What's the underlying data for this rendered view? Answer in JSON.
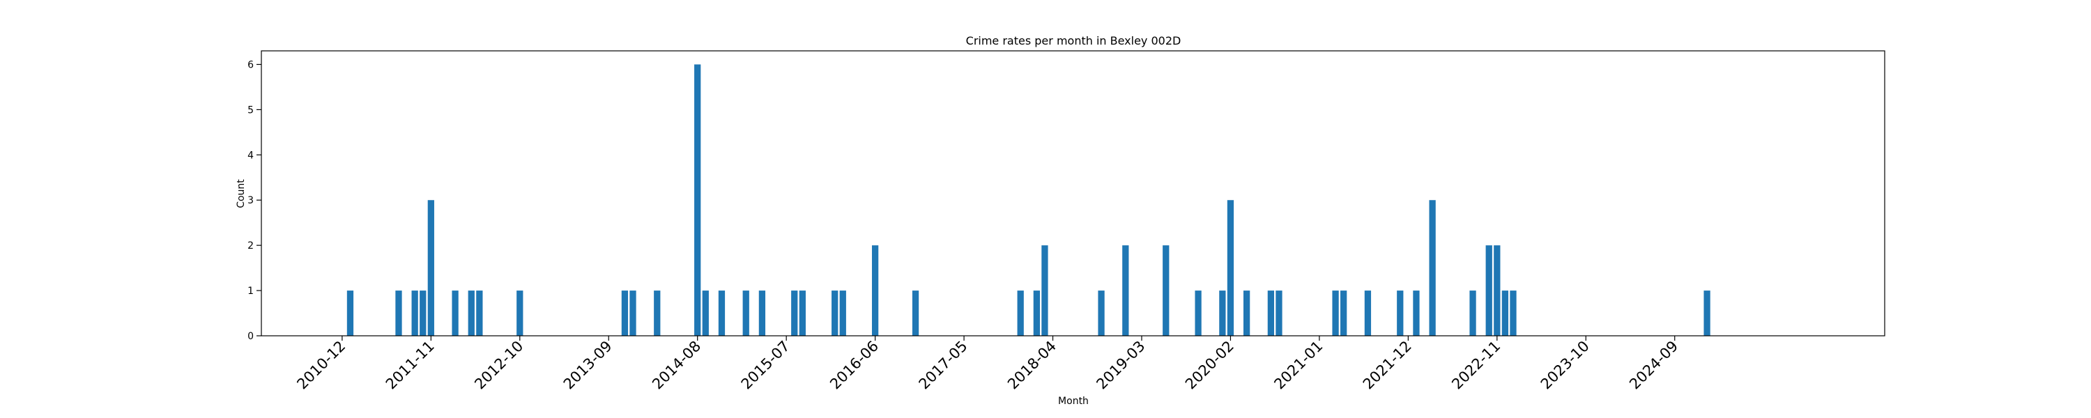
{
  "chart_data": {
    "type": "bar",
    "title": "Crime rates per month in Bexley 002D",
    "xlabel": "Month",
    "ylabel": "Count",
    "ylim": [
      0,
      6.3
    ],
    "xlim": [
      "2010-02",
      "2026-11"
    ],
    "yticks": [
      0,
      1,
      2,
      3,
      4,
      5,
      6
    ],
    "xticks": [
      "2010-12",
      "2011-11",
      "2012-10",
      "2013-09",
      "2014-08",
      "2015-07",
      "2016-06",
      "2017-05",
      "2018-04",
      "2019-03",
      "2020-02",
      "2021-01",
      "2021-12",
      "2022-11",
      "2023-10",
      "2024-09"
    ],
    "grid": false,
    "color": "#1f77b4",
    "series": [
      {
        "x": [
          "2011-01",
          "2011-07",
          "2011-09",
          "2011-10",
          "2011-11",
          "2012-02",
          "2012-04",
          "2012-05",
          "2012-10",
          "2013-11",
          "2013-12",
          "2014-03",
          "2014-08",
          "2014-09",
          "2014-11",
          "2015-02",
          "2015-04",
          "2015-08",
          "2015-09",
          "2016-01",
          "2016-02",
          "2016-06",
          "2016-11",
          "2017-12",
          "2018-02",
          "2018-03",
          "2018-10",
          "2019-01",
          "2019-06",
          "2019-10",
          "2020-01",
          "2020-02",
          "2020-04",
          "2020-07",
          "2020-08",
          "2021-03",
          "2021-04",
          "2021-07",
          "2021-11",
          "2022-01",
          "2022-03",
          "2022-08",
          "2022-10",
          "2022-11",
          "2022-12",
          "2023-01",
          "2025-01"
        ],
        "values": [
          1,
          1,
          1,
          1,
          3,
          1,
          1,
          1,
          1,
          1,
          1,
          1,
          6,
          1,
          1,
          1,
          1,
          1,
          1,
          1,
          1,
          2,
          1,
          1,
          1,
          2,
          1,
          2,
          2,
          1,
          1,
          3,
          1,
          1,
          1,
          1,
          1,
          1,
          1,
          1,
          3,
          1,
          2,
          2,
          1,
          1,
          1
        ]
      }
    ]
  }
}
